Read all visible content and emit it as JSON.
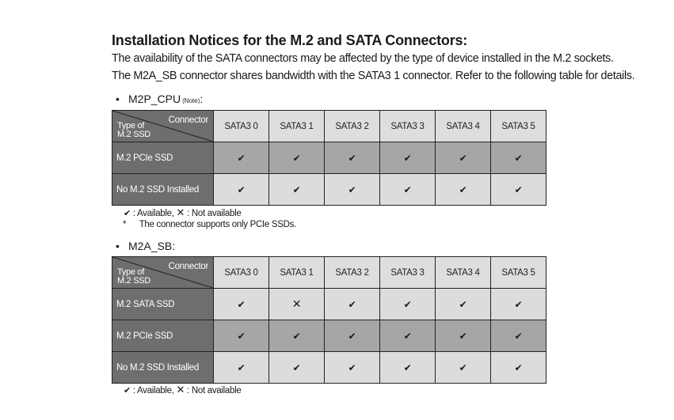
{
  "heading": "Installation Notices for the M.2 and SATA Connectors:",
  "paragraphs": [
    "The availability of the SATA connectors may be affected by the type of device installed in the M.2 sockets.",
    "The M2A_SB connector shares bandwidth with the SATA3 1 connector. Refer to the following table for details."
  ],
  "bullet": "•",
  "available_symbol": "✔",
  "unavailable_symbol": "✕",
  "section1": {
    "label": "M2P_CPU",
    "note_ref": "(Note)",
    "suffix": ":",
    "corner_top": "Connector",
    "corner_bottom_line1": "Type of",
    "corner_bottom_line2": "M.2 SSD",
    "columns": [
      "SATA3 0",
      "SATA3 1",
      "SATA3 2",
      "SATA3 3",
      "SATA3 4",
      "SATA3 5"
    ],
    "rows": [
      {
        "label": "M.2 PCIe SSD",
        "cells": [
          "✔",
          "✔",
          "✔",
          "✔",
          "✔",
          "✔"
        ]
      },
      {
        "label": "No M.2 SSD Installed",
        "cells": [
          "✔",
          "✔",
          "✔",
          "✔",
          "✔",
          "✔"
        ]
      }
    ],
    "legend_available": ": Available, ",
    "legend_unavailable": ": Not available",
    "note_star": "*",
    "note_text": "The connector supports only PCIe SSDs."
  },
  "section2": {
    "label": "M2A_SB:",
    "corner_top": "Connector",
    "corner_bottom_line1": "Type of",
    "corner_bottom_line2": "M.2 SSD",
    "columns": [
      "SATA3 0",
      "SATA3 1",
      "SATA3 2",
      "SATA3 3",
      "SATA3 4",
      "SATA3 5"
    ],
    "rows": [
      {
        "label": "M.2 SATA SSD",
        "cells": [
          "✔",
          "✕",
          "✔",
          "✔",
          "✔",
          "✔"
        ]
      },
      {
        "label": "M.2 PCIe SSD",
        "cells": [
          "✔",
          "✔",
          "✔",
          "✔",
          "✔",
          "✔"
        ]
      },
      {
        "label": "No M.2 SSD Installed",
        "cells": [
          "✔",
          "✔",
          "✔",
          "✔",
          "✔",
          "✔"
        ]
      }
    ],
    "legend_available": ": Available, ",
    "legend_unavailable": ": Not available"
  }
}
